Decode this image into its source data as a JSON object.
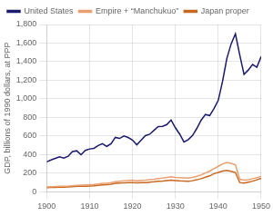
{
  "chart_data": {
    "type": "line",
    "y_label": "GDP, billions of 1990 dollars, at PPP",
    "x": [
      1900,
      1901,
      1902,
      1903,
      1904,
      1905,
      1906,
      1907,
      1908,
      1909,
      1910,
      1911,
      1912,
      1913,
      1914,
      1915,
      1916,
      1917,
      1918,
      1919,
      1920,
      1921,
      1922,
      1923,
      1924,
      1925,
      1926,
      1927,
      1928,
      1929,
      1930,
      1931,
      1932,
      1933,
      1934,
      1935,
      1936,
      1937,
      1938,
      1939,
      1940,
      1941,
      1942,
      1943,
      1944,
      1945,
      1946,
      1947,
      1948,
      1949,
      1950
    ],
    "series": [
      {
        "name": "United States",
        "color": "#1a1a6e",
        "values": [
          321,
          341,
          358,
          375,
          362,
          381,
          432,
          440,
          398,
          444,
          460,
          467,
          497,
          517,
          488,
          516,
          584,
          573,
          599,
          583,
          556,
          505,
          554,
          603,
          618,
          660,
          701,
          703,
          722,
          772,
          688,
          620,
          535,
          560,
          605,
          681,
          769,
          831,
          820,
          895,
          983,
          1188,
          1435,
          1591,
          1700,
          1474,
          1263,
          1310,
          1370,
          1340,
          1456
        ]
      },
      {
        "name": "Empire + “Manchukuo”",
        "color": "#e8a070",
        "values": [
          52,
          54,
          55,
          57,
          58,
          60,
          64,
          68,
          70,
          72,
          75,
          78,
          83,
          89,
          91,
          98,
          108,
          113,
          118,
          122,
          124,
          118,
          122,
          124,
          129,
          134,
          142,
          146,
          153,
          160,
          154,
          152,
          149,
          145,
          153,
          165,
          180,
          201,
          222,
          248,
          273,
          299,
          315,
          304,
          289,
          134,
          124,
          129,
          140,
          150,
          165
        ]
      },
      {
        "name": "Japan proper",
        "color": "#c86820",
        "values": [
          44,
          46,
          47,
          48,
          49,
          51,
          54,
          57,
          58,
          59,
          61,
          64,
          69,
          73,
          75,
          81,
          89,
          92,
          96,
          97,
          98,
          95,
          97,
          98,
          103,
          106,
          112,
          114,
          119,
          125,
          120,
          116,
          114,
          112,
          118,
          128,
          140,
          156,
          170,
          194,
          207,
          222,
          229,
          219,
          207,
          98,
          93,
          103,
          113,
          128,
          143
        ]
      }
    ],
    "xlim": [
      1900,
      1950
    ],
    "xticks": [
      1900,
      1910,
      1920,
      1930,
      1940,
      1950
    ],
    "ylim": [
      0,
      1800
    ],
    "yticks": [
      0,
      200,
      400,
      600,
      800,
      {
        "value": 1000,
        "label": "1,000"
      },
      {
        "value": 1200,
        "label": "1,200"
      },
      {
        "value": 1400,
        "label": "1,400"
      },
      {
        "value": 1600,
        "label": "1,600"
      },
      {
        "value": 1800,
        "label": "1,800"
      }
    ],
    "grid": true,
    "legend": "upper left"
  }
}
